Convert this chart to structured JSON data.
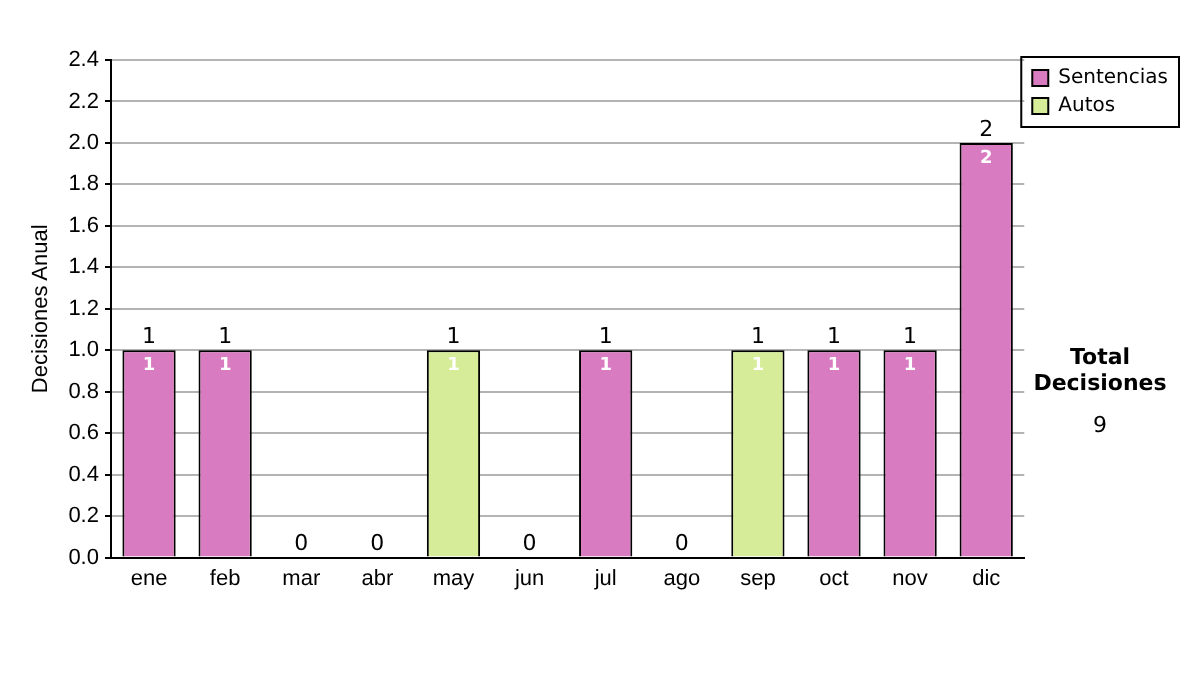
{
  "chart_data": {
    "type": "bar",
    "stacked": true,
    "ylabel": "Decisiones Anual",
    "categories": [
      "ene",
      "feb",
      "mar",
      "abr",
      "may",
      "jun",
      "jul",
      "ago",
      "sep",
      "oct",
      "nov",
      "dic"
    ],
    "series": [
      {
        "name": "Sentencias",
        "color": "#d97bc0",
        "values": [
          1,
          1,
          0,
          0,
          0,
          0,
          1,
          0,
          0,
          1,
          1,
          2
        ],
        "value_labels": [
          "1",
          "1",
          null,
          null,
          null,
          null,
          "1",
          null,
          null,
          "1",
          "1",
          "2"
        ]
      },
      {
        "name": "Autos",
        "color": "#d6ec98",
        "values": [
          0,
          0,
          0,
          0,
          1,
          0,
          0,
          0,
          1,
          0,
          0,
          0
        ],
        "value_labels": [
          null,
          null,
          null,
          null,
          "1",
          null,
          null,
          null,
          "1",
          null,
          null,
          null
        ]
      }
    ],
    "totals": [
      "1",
      "1",
      "0",
      "0",
      "1",
      "0",
      "1",
      "0",
      "1",
      "1",
      "1",
      "2"
    ],
    "ylim": [
      0,
      2.4
    ],
    "yticks": [
      {
        "value": 0,
        "label": "0.0"
      },
      {
        "value": 0.2,
        "label": "0.2"
      },
      {
        "value": 0.4,
        "label": "0.4"
      },
      {
        "value": 0.6,
        "label": "0.6"
      },
      {
        "value": 0.8,
        "label": "0.8"
      },
      {
        "value": 1,
        "label": "1.0"
      },
      {
        "value": 1.2,
        "label": "1.2"
      },
      {
        "value": 1.4,
        "label": "1.4"
      },
      {
        "value": 1.6,
        "label": "1.6"
      },
      {
        "value": 1.8,
        "label": "1.8"
      },
      {
        "value": 2,
        "label": "2.0"
      },
      {
        "value": 2.2,
        "label": "2.2"
      },
      {
        "value": 2.4,
        "label": "2.4"
      }
    ],
    "grid": "y",
    "legend": "right",
    "annotations": [
      "Total Decisiones",
      "9"
    ]
  }
}
